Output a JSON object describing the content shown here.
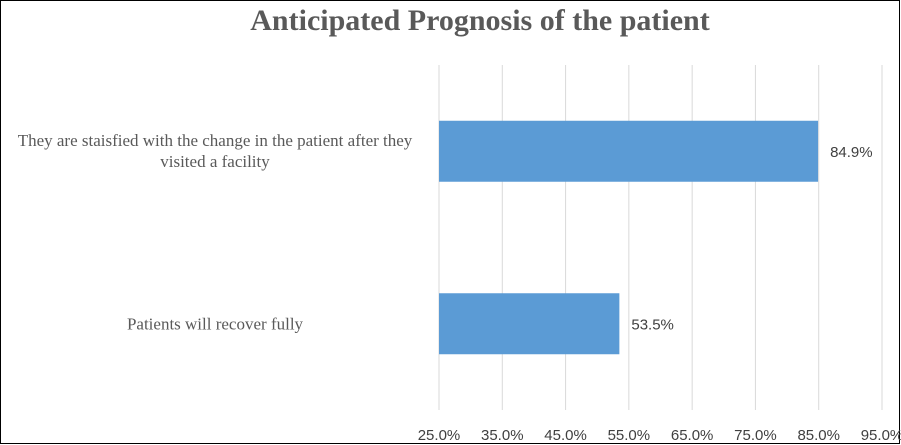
{
  "chart_data": {
    "type": "bar",
    "orientation": "horizontal",
    "title": "Anticipated Prognosis of the patient",
    "categories": [
      "They are staisfied with the change in the patient after they visited a facility",
      "Patients will recover fully"
    ],
    "values": [
      84.9,
      53.5
    ],
    "value_labels": [
      "84.9%",
      "53.5%"
    ],
    "color": "#5b9bd5",
    "xlim": [
      25,
      95
    ],
    "xticks": [
      {
        "value": 25,
        "label": "25.0%"
      },
      {
        "value": 35,
        "label": "35.0%"
      },
      {
        "value": 45,
        "label": "45.0%"
      },
      {
        "value": 55,
        "label": "55.0%"
      },
      {
        "value": 65,
        "label": "65.0%"
      },
      {
        "value": 75,
        "label": "75.0%"
      },
      {
        "value": 85,
        "label": "85.0%"
      },
      {
        "value": 95,
        "label": "95.0%"
      }
    ],
    "grid": true
  }
}
